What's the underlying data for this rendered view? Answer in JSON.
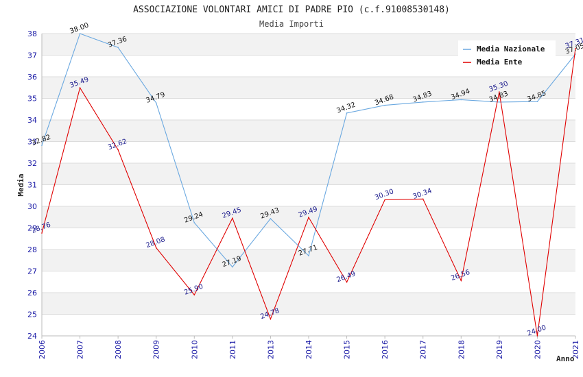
{
  "chart_data": {
    "type": "line",
    "title": "ASSOCIAZIONE VOLONTARI AMICI DI PADRE PIO (c.f.91008530148)",
    "subtitle": "Media Importi",
    "xlabel": "Anno",
    "ylabel": "Media",
    "categories": [
      "2006",
      "2007",
      "2008",
      "2009",
      "2010",
      "2011",
      "2013",
      "2014",
      "2015",
      "2016",
      "2017",
      "2018",
      "2019",
      "2020",
      "2021"
    ],
    "ylim": [
      24,
      38
    ],
    "yticks": [
      24,
      25,
      26,
      27,
      28,
      29,
      30,
      31,
      32,
      33,
      34,
      35,
      36,
      37,
      38
    ],
    "grid": true,
    "legend_position": "top-right",
    "series": [
      {
        "name": "Media Nazionale",
        "color": "#6aa8e0",
        "values": [
          32.82,
          38.0,
          37.36,
          34.79,
          29.24,
          27.19,
          29.43,
          27.71,
          34.32,
          34.68,
          34.83,
          34.94,
          34.83,
          34.85,
          37.05
        ],
        "labels": [
          "32.82",
          "38.00",
          "37.36",
          "34.79",
          "29.24",
          "27.19",
          "29.43",
          "27.71",
          "34.32",
          "34.68",
          "34.83",
          "34.94",
          "34.83",
          "34.85",
          "37.05"
        ]
      },
      {
        "name": "Media Ente",
        "color": "#e00000",
        "values": [
          28.76,
          35.49,
          32.62,
          28.08,
          25.9,
          29.45,
          24.78,
          29.49,
          26.49,
          30.3,
          30.34,
          26.56,
          35.3,
          24.0,
          37.31
        ],
        "labels": [
          "28.76",
          "35.49",
          "32.62",
          "28.08",
          "25.90",
          "29.45",
          "24.78",
          "29.49",
          "26.49",
          "30.30",
          "30.34",
          "26.56",
          "35.30",
          "24.00",
          "37.31"
        ]
      }
    ]
  }
}
